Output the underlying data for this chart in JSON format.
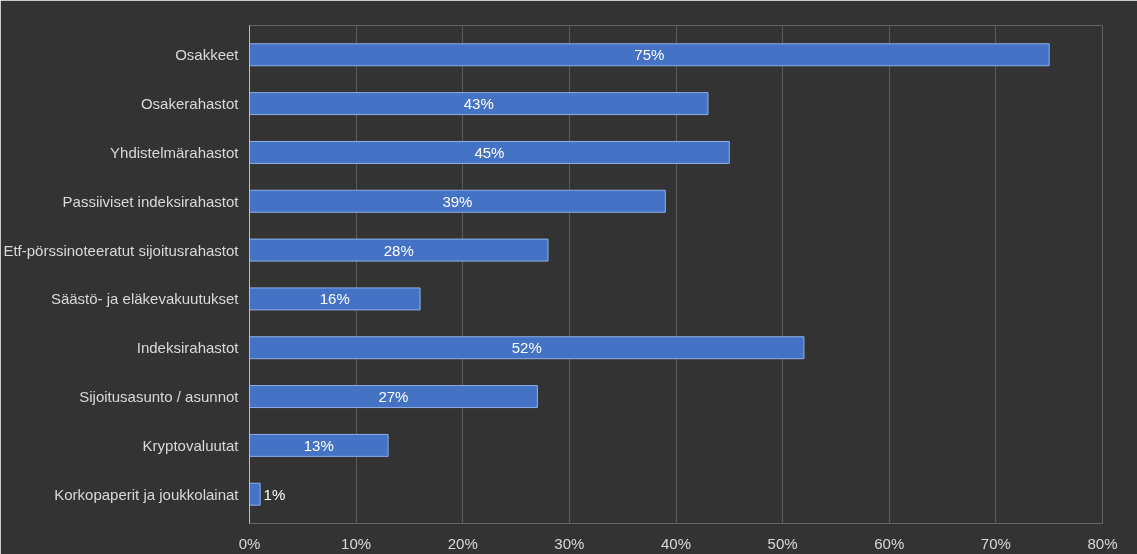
{
  "chart_data": {
    "type": "bar",
    "orientation": "horizontal",
    "categories": [
      "Osakkeet",
      "Osakerahastot",
      "Yhdistelmärahastot",
      "Passiiviset indeksirahastot",
      "Etf-pörssinoteeratut sijoitusrahastot",
      "Säästö- ja eläkevakuutukset",
      "Indeksirahastot",
      "Sijoitusasunto / asunnot",
      "Kryptovaluutat",
      "Korkopaperit ja joukkolainat"
    ],
    "values": [
      75,
      43,
      45,
      39,
      28,
      16,
      52,
      27,
      13,
      1
    ],
    "value_labels": [
      "75%",
      "43%",
      "45%",
      "39%",
      "28%",
      "16%",
      "52%",
      "27%",
      "13%",
      "1%"
    ],
    "color": "#4472c4",
    "xlim": [
      0,
      80
    ],
    "xticks": [
      {
        "value": 0,
        "label": "0%"
      },
      {
        "value": 10,
        "label": "10%"
      },
      {
        "value": 20,
        "label": "20%"
      },
      {
        "value": 30,
        "label": "30%"
      },
      {
        "value": 40,
        "label": "40%"
      },
      {
        "value": 50,
        "label": "50%"
      },
      {
        "value": 60,
        "label": "60%"
      },
      {
        "value": 70,
        "label": "70%"
      },
      {
        "value": 80,
        "label": "80%"
      }
    ],
    "grid": "x"
  }
}
